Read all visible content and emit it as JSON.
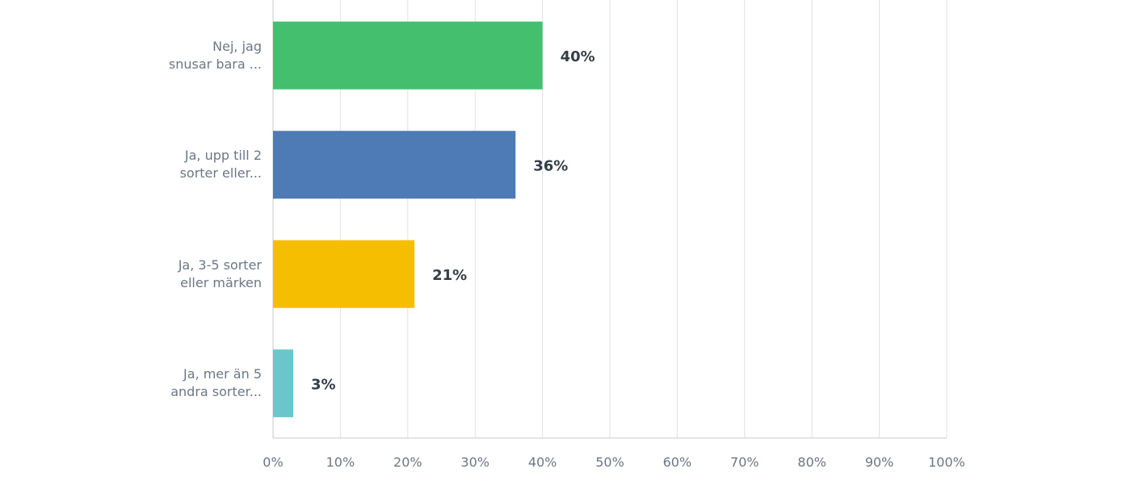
{
  "chart_data": {
    "type": "hbar",
    "categories": [
      "Nej, jag\nsnusar bara ...",
      "Ja, upp till 2\nsorter eller...",
      "Ja, 3-5 sorter\neller märken",
      "Ja, mer än 5\nandra sorter..."
    ],
    "values": [
      40,
      36,
      21,
      3
    ],
    "value_labels": [
      "40%",
      "36%",
      "21%",
      "3%"
    ],
    "colors": [
      "#43bf6e",
      "#4e7ab5",
      "#f5be00",
      "#6ac6cb"
    ],
    "xlim": [
      0,
      100
    ],
    "xticks": [
      {
        "value": 0,
        "label": "0%"
      },
      {
        "value": 10,
        "label": "10%"
      },
      {
        "value": 20,
        "label": "20%"
      },
      {
        "value": 30,
        "label": "30%"
      },
      {
        "value": 40,
        "label": "40%"
      },
      {
        "value": 50,
        "label": "50%"
      },
      {
        "value": 60,
        "label": "60%"
      },
      {
        "value": 70,
        "label": "70%"
      },
      {
        "value": 80,
        "label": "80%"
      },
      {
        "value": 90,
        "label": "90%"
      },
      {
        "value": 100,
        "label": "100%"
      }
    ],
    "grid": true
  }
}
